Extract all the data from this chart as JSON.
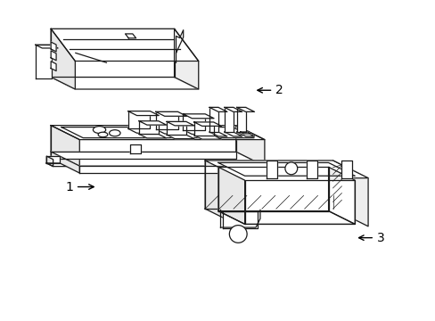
{
  "background_color": "#ffffff",
  "line_color": "#1a1a1a",
  "line_width": 0.9,
  "label_fontsize": 10,
  "skew": 0.28
}
